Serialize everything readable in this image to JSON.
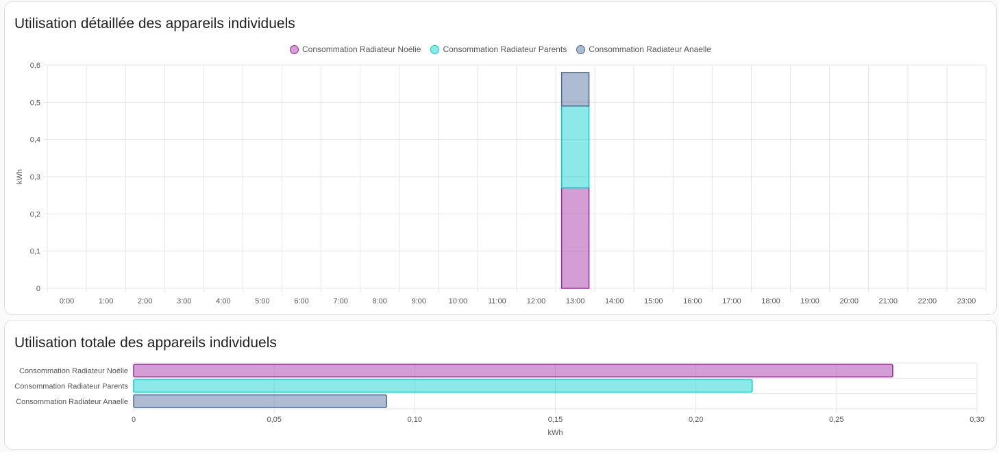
{
  "cards": [
    {
      "title": "Utilisation détaillée des appareils individuels",
      "chart_data": {
        "type": "bar",
        "stacked": true,
        "categories": [
          "0:00",
          "1:00",
          "2:00",
          "3:00",
          "4:00",
          "5:00",
          "6:00",
          "7:00",
          "8:00",
          "9:00",
          "10:00",
          "11:00",
          "12:00",
          "13:00",
          "14:00",
          "15:00",
          "16:00",
          "17:00",
          "18:00",
          "19:00",
          "20:00",
          "21:00",
          "22:00",
          "23:00"
        ],
        "series": [
          {
            "name": "Consommation Radiateur Noélie",
            "color": "#9b27a0",
            "values": [
              0,
              0,
              0,
              0,
              0,
              0,
              0,
              0,
              0,
              0,
              0,
              0,
              0,
              0.27,
              0,
              0,
              0,
              0,
              0,
              0,
              0,
              0,
              0,
              0
            ]
          },
          {
            "name": "Consommation Radiateur Parents",
            "color": "#00cec9",
            "values": [
              0,
              0,
              0,
              0,
              0,
              0,
              0,
              0,
              0,
              0,
              0,
              0,
              0,
              0.22,
              0,
              0,
              0,
              0,
              0,
              0,
              0,
              0,
              0,
              0
            ]
          },
          {
            "name": "Consommation Radiateur Anaelle",
            "color": "#4a6a96",
            "values": [
              0,
              0,
              0,
              0,
              0,
              0,
              0,
              0,
              0,
              0,
              0,
              0,
              0,
              0.09,
              0,
              0,
              0,
              0,
              0,
              0,
              0,
              0,
              0,
              0
            ]
          }
        ],
        "ylabel": "kWh",
        "xlabel": "",
        "ylim": [
          0,
          0.6
        ],
        "yticks": [
          "0",
          "0,1",
          "0,2",
          "0,3",
          "0,4",
          "0,5",
          "0,6"
        ],
        "grid": true,
        "legend": "top-center"
      }
    },
    {
      "title": "Utilisation totale des appareils individuels",
      "chart_data": {
        "type": "bar",
        "orientation": "horizontal",
        "categories": [
          "Consommation Radiateur Noélie",
          "Consommation Radiateur Parents",
          "Consommation Radiateur Anaelle"
        ],
        "values": [
          0.27,
          0.22,
          0.09
        ],
        "colors": [
          "#9b27a0",
          "#00cec9",
          "#4a6a96"
        ],
        "xlabel": "kWh",
        "xlim": [
          0,
          0.3
        ],
        "xticks": [
          "0",
          "0,05",
          "0,10",
          "0,15",
          "0,20",
          "0,25",
          "0,30"
        ],
        "grid": true
      }
    }
  ]
}
